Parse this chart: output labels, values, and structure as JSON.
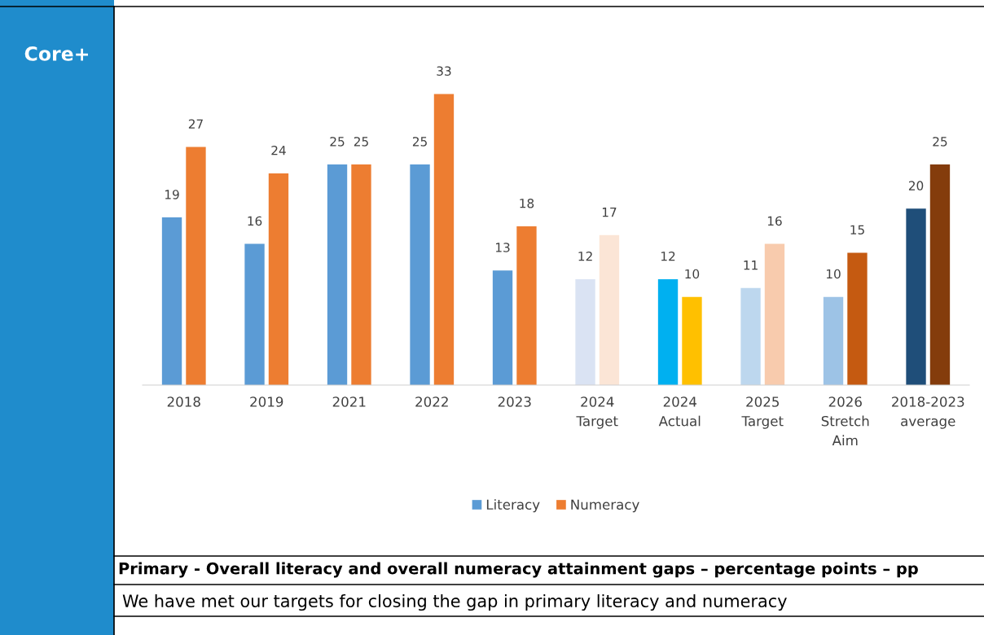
{
  "chart_data": {
    "type": "bar",
    "title": "Primary - Overall literacy and overall numeracy attainment gaps – percentage points – pp",
    "subtitle": "Core+",
    "annotations": [
      "We have met our targets for closing the gap in primary literacy and numeracy"
    ],
    "categories": [
      "2018",
      "2019",
      "2021",
      "2022",
      "2023",
      "2024\nTarget",
      "2024\nActual",
      "2025\nTarget",
      "2026\nStretch\nAim",
      "2018-2023\naverage"
    ],
    "series": [
      {
        "name": "Literacy",
        "color": "#5b9bd5",
        "values": [
          19,
          16,
          25,
          25,
          13,
          12,
          12,
          11,
          10,
          20
        ],
        "colors": [
          "#5b9bd5",
          "#5b9bd5",
          "#5b9bd5",
          "#5b9bd5",
          "#5b9bd5",
          "#dae3f3",
          "#00b0f0",
          "#bdd7ee",
          "#9dc3e6",
          "#1f4e79"
        ]
      },
      {
        "name": "Numeracy",
        "color": "#ed7d31",
        "values": [
          27,
          24,
          25,
          33,
          18,
          17,
          10,
          16,
          15,
          25
        ],
        "colors": [
          "#ed7d31",
          "#ed7d31",
          "#ed7d31",
          "#ed7d31",
          "#ed7d31",
          "#fbe5d6",
          "#ffc000",
          "#f8cbad",
          "#c55a11",
          "#843c0c"
        ]
      }
    ],
    "data_labels": true,
    "grid": false,
    "legend": "bottom"
  }
}
